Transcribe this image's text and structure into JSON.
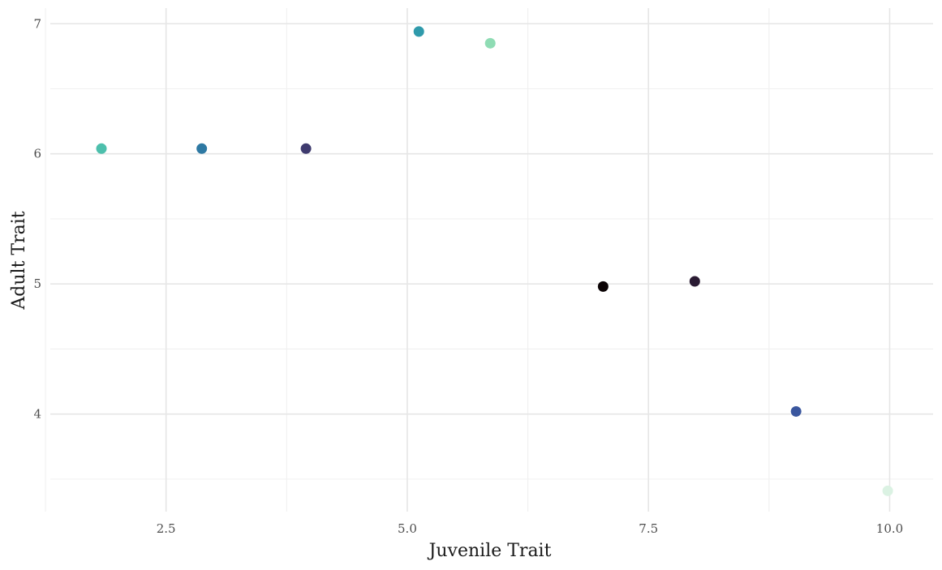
{
  "chart_data": {
    "type": "scatter",
    "title": "",
    "xlabel": "Juvenile Trait",
    "ylabel": "Adult Trait",
    "xlim": [
      1.3,
      10.45
    ],
    "ylim": [
      3.25,
      7.12
    ],
    "x_ticks": [
      {
        "value": 2.5,
        "label": "2.5"
      },
      {
        "value": 5.0,
        "label": "5.0"
      },
      {
        "value": 7.5,
        "label": "7.5"
      },
      {
        "value": 10.0,
        "label": "10.0"
      }
    ],
    "y_ticks": [
      {
        "value": 4,
        "label": "4"
      },
      {
        "value": 5,
        "label": "5"
      },
      {
        "value": 6,
        "label": "6"
      },
      {
        "value": 7,
        "label": "7"
      }
    ],
    "x_minor": [
      1.25,
      3.75,
      6.25,
      8.75
    ],
    "y_minor": [
      3.5,
      4.5,
      5.5,
      6.5
    ],
    "grid": true,
    "legend": "none",
    "points": [
      {
        "x": 1.83,
        "y": 6.04,
        "color": "#4dbfac"
      },
      {
        "x": 2.87,
        "y": 6.04,
        "color": "#2e79a3"
      },
      {
        "x": 3.95,
        "y": 6.04,
        "color": "#3e3a6e"
      },
      {
        "x": 5.12,
        "y": 6.94,
        "color": "#2f9aab"
      },
      {
        "x": 5.86,
        "y": 6.85,
        "color": "#8fdcb4"
      },
      {
        "x": 7.03,
        "y": 4.98,
        "color": "#0b0405"
      },
      {
        "x": 7.98,
        "y": 5.02,
        "color": "#2a1b33"
      },
      {
        "x": 9.03,
        "y": 4.02,
        "color": "#3a569e"
      },
      {
        "x": 9.98,
        "y": 3.41,
        "color": "#dbf2e3"
      }
    ]
  }
}
